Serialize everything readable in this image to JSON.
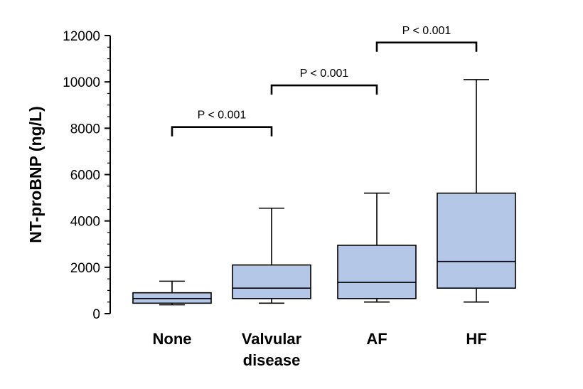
{
  "chart_data": {
    "type": "box",
    "ylabel": "NT-proBNP (ng/L)",
    "xlabel": "",
    "ylim": [
      0,
      12000
    ],
    "yticks": [
      0,
      2000,
      4000,
      6000,
      8000,
      10000,
      12000
    ],
    "categories": [
      [
        "None"
      ],
      [
        "Valvular",
        "disease"
      ],
      [
        "AF"
      ],
      [
        "HF"
      ]
    ],
    "boxes": [
      {
        "whisker_low": 380,
        "q1": 450,
        "median": 650,
        "q3": 900,
        "whisker_high": 1400
      },
      {
        "whisker_low": 450,
        "q1": 650,
        "median": 1100,
        "q3": 2100,
        "whisker_high": 4550
      },
      {
        "whisker_low": 500,
        "q1": 650,
        "median": 1350,
        "q3": 2950,
        "whisker_high": 5200
      },
      {
        "whisker_low": 500,
        "q1": 1100,
        "median": 2250,
        "q3": 5200,
        "whisker_high": 10100
      }
    ],
    "box_color": "#b4c7e7",
    "comparisons": [
      {
        "from": 0,
        "to": 1,
        "y": 8050,
        "label": "P < 0.001"
      },
      {
        "from": 1,
        "to": 2,
        "y": 9850,
        "label": "P < 0.001"
      },
      {
        "from": 2,
        "to": 3,
        "y": 11700,
        "label": "P < 0.001"
      }
    ],
    "grid": false,
    "legend": "none"
  }
}
